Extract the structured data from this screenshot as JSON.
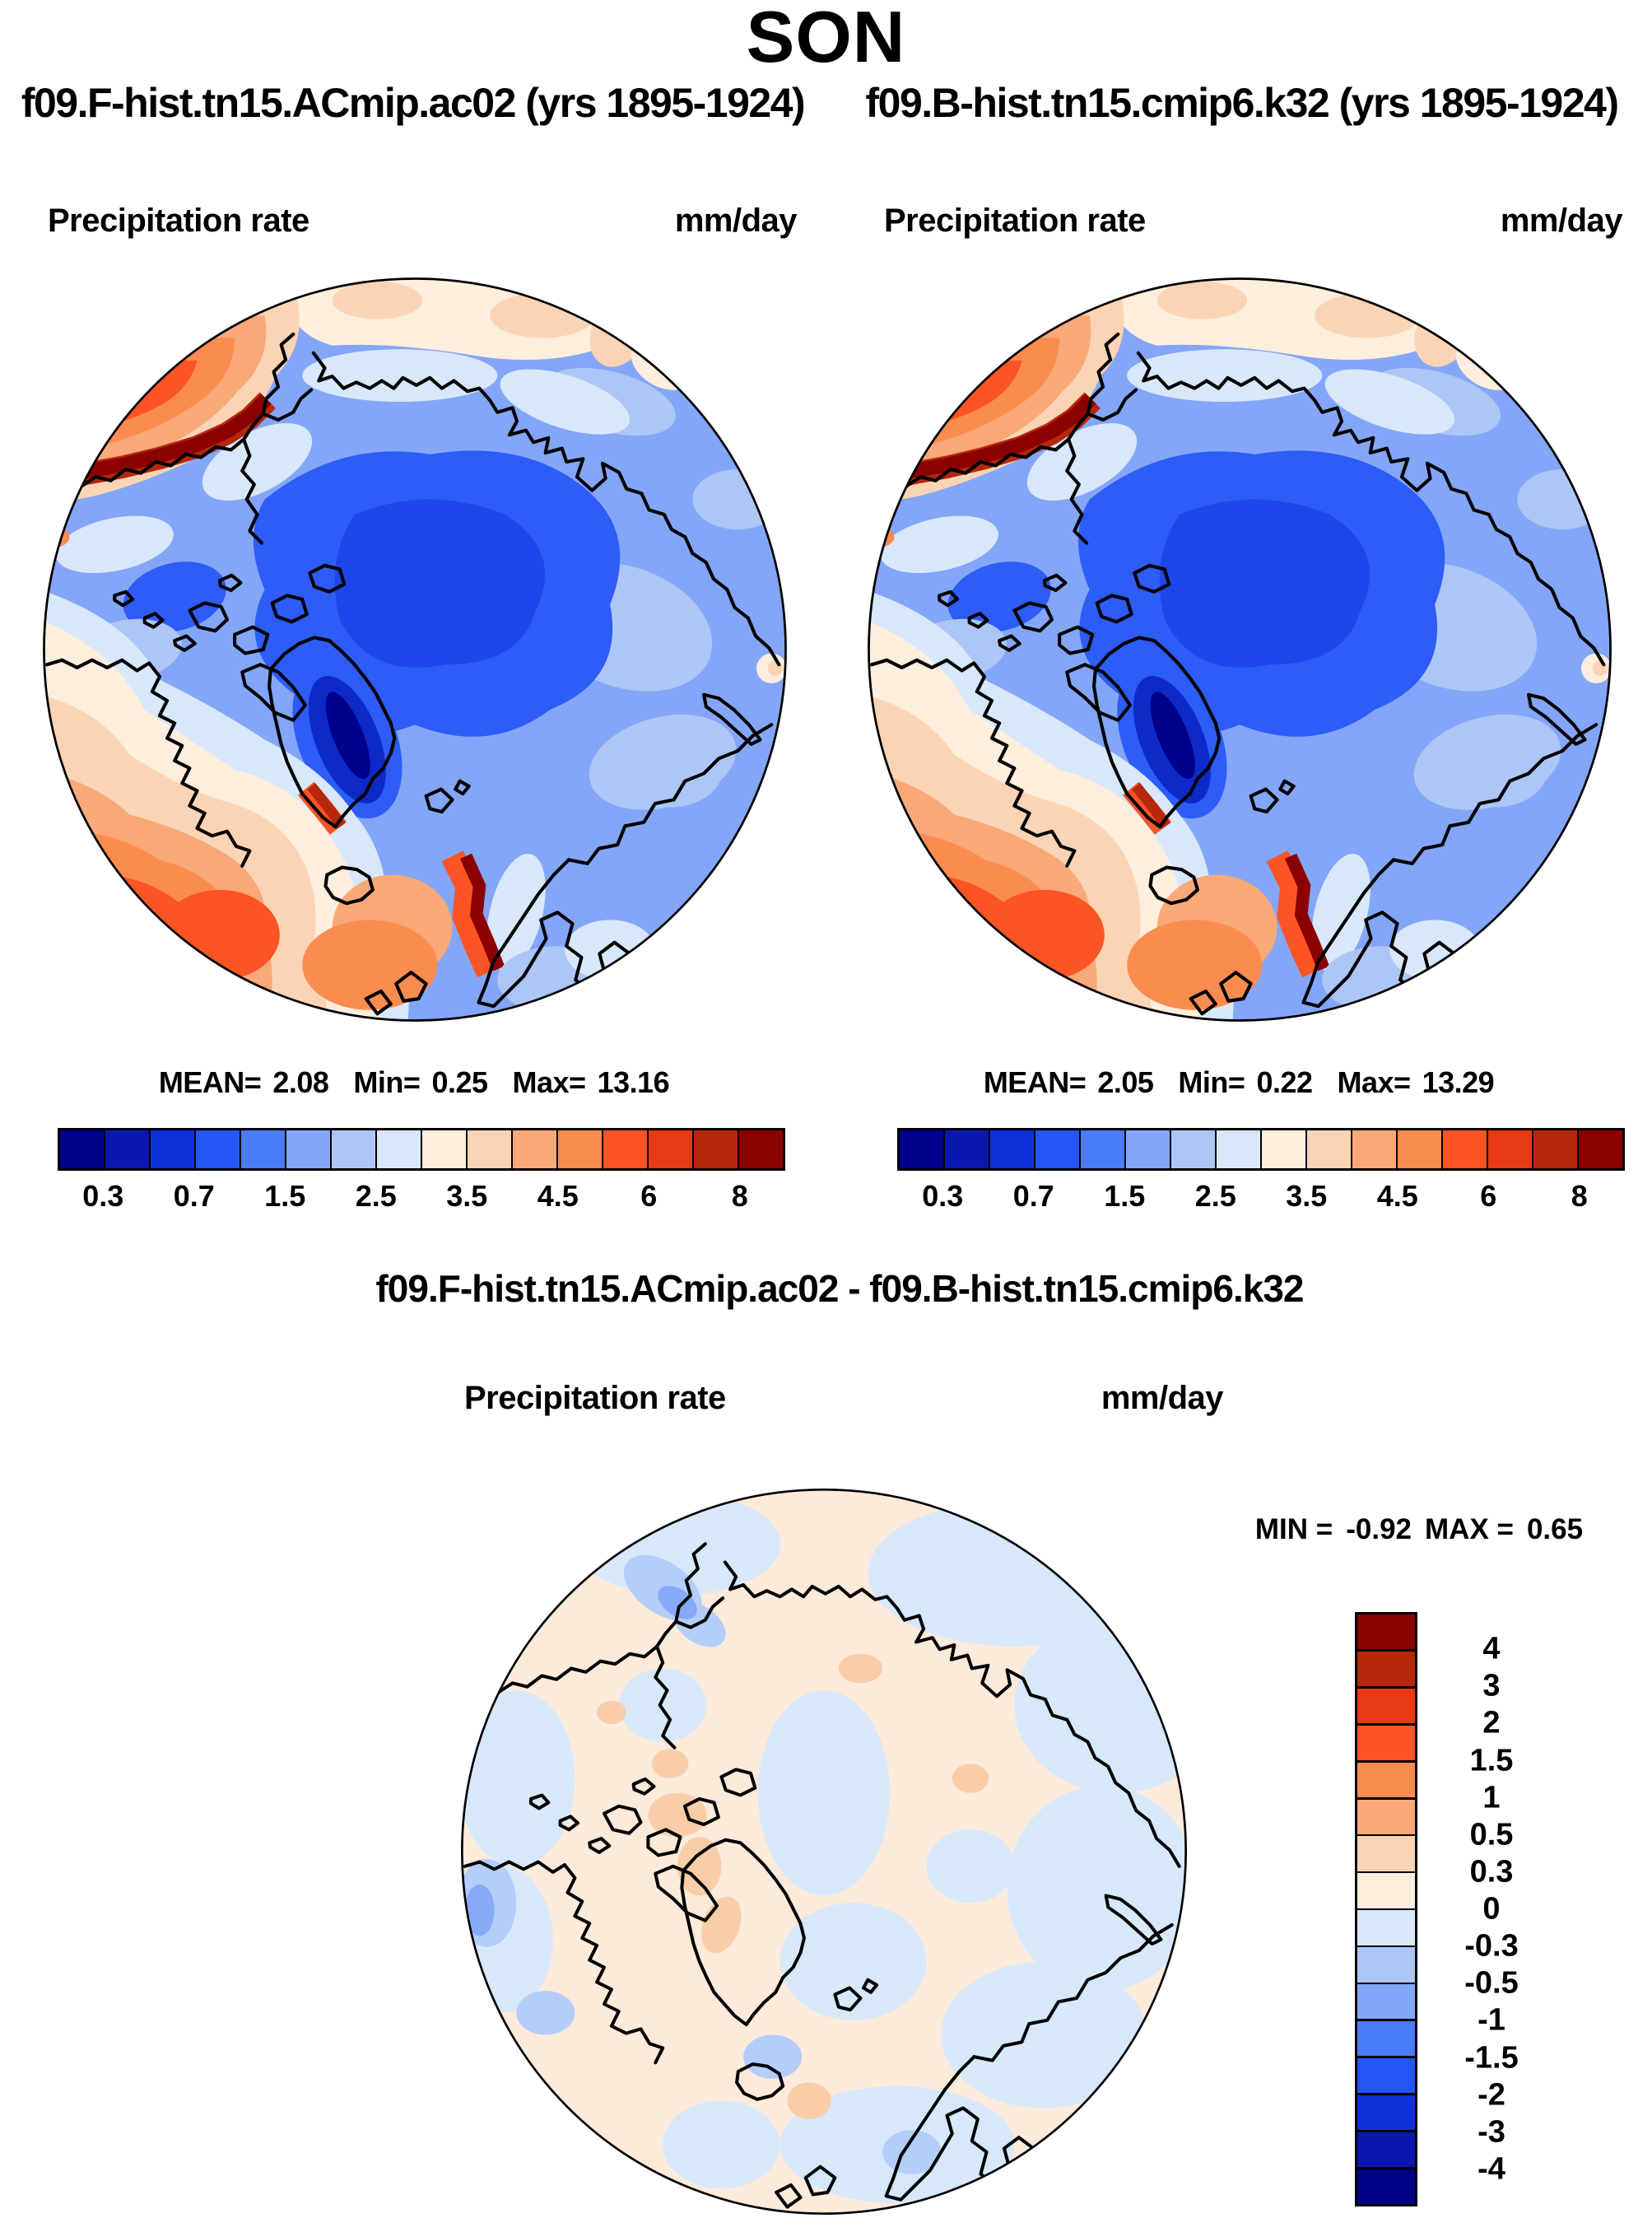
{
  "title": "SON",
  "panels": [
    {
      "subtitle": "f09.F-hist.tn15.ACmip.ac02 (yrs 1895-1924)",
      "var_label": "Precipitation rate",
      "units": "mm/day",
      "stats": {
        "mean_label": "MEAN=",
        "mean": "2.08",
        "min_label": "Min=",
        "min": "0.25",
        "max_label": "Max=",
        "max": "13.16"
      },
      "ticks": [
        "0.3",
        "0.7",
        "1.5",
        "2.5",
        "3.5",
        "4.5",
        "6",
        "8"
      ]
    },
    {
      "subtitle": "f09.B-hist.tn15.cmip6.k32 (yrs 1895-1924)",
      "var_label": "Precipitation rate",
      "units": "mm/day",
      "stats": {
        "mean_label": "MEAN=",
        "mean": "2.05",
        "min_label": "Min=",
        "min": "0.22",
        "max_label": "Max=",
        "max": "13.29"
      },
      "ticks": [
        "0.3",
        "0.7",
        "1.5",
        "2.5",
        "3.5",
        "4.5",
        "6",
        "8"
      ]
    }
  ],
  "diff": {
    "title": "f09.F-hist.tn15.ACmip.ac02 - f09.B-hist.tn15.cmip6.k32",
    "var_label": "Precipitation rate",
    "units": "mm/day",
    "min_label": "MIN =",
    "min": "-0.92",
    "max_label": "MAX =",
    "max": "0.65",
    "ticks": [
      "4",
      "3",
      "2",
      "1.5",
      "1",
      "0.5",
      "0.3",
      "0",
      "-0.3",
      "-0.5",
      "-1",
      "-1.5",
      "-2",
      "-3",
      "-4"
    ]
  },
  "palette": {
    "precip_colors": [
      "#00008b",
      "#0a17b0",
      "#1031d8",
      "#2356f5",
      "#4a7cf8",
      "#84a6f8",
      "#aec6f5",
      "#d8e8fa",
      "#fdeedd",
      "#fbd4b6",
      "#f9a878",
      "#fb8c50",
      "#fd5426",
      "#e63914",
      "#b5280c",
      "#8b0000"
    ],
    "diff_colors_top_to_bottom": [
      "#8b0000",
      "#b5280c",
      "#e63914",
      "#fd5426",
      "#fb8c50",
      "#f9a878",
      "#fbd4b6",
      "#fdeedd",
      "#d8e8fa",
      "#aec6f5",
      "#84a6f8",
      "#4a7cf8",
      "#2356f5",
      "#1031d8",
      "#0a17b0",
      "#00008b"
    ]
  },
  "chart_data": [
    {
      "type": "heatmap",
      "projection": "north-polar-stereographic",
      "title": "f09.F-hist.tn15.ACmip.ac02 (yrs 1895-1924)",
      "variable": "Precipitation rate",
      "units": "mm/day",
      "stats": {
        "mean": 2.08,
        "min": 0.25,
        "max": 13.16
      },
      "contour_levels": [
        0.3,
        0.5,
        0.7,
        1,
        1.5,
        2,
        2.5,
        3,
        3.5,
        4,
        4.5,
        5,
        6,
        7,
        8
      ],
      "labeled_ticks": [
        0.3,
        0.7,
        1.5,
        2.5,
        3.5,
        4.5,
        6,
        8
      ],
      "colormap": "16-step blue-to-red",
      "legend_position": "below-horizontal"
    },
    {
      "type": "heatmap",
      "projection": "north-polar-stereographic",
      "title": "f09.B-hist.tn15.cmip6.k32 (yrs 1895-1924)",
      "variable": "Precipitation rate",
      "units": "mm/day",
      "stats": {
        "mean": 2.05,
        "min": 0.22,
        "max": 13.29
      },
      "contour_levels": [
        0.3,
        0.5,
        0.7,
        1,
        1.5,
        2,
        2.5,
        3,
        3.5,
        4,
        4.5,
        5,
        6,
        7,
        8
      ],
      "labeled_ticks": [
        0.3,
        0.7,
        1.5,
        2.5,
        3.5,
        4.5,
        6,
        8
      ],
      "colormap": "16-step blue-to-red",
      "legend_position": "below-horizontal"
    },
    {
      "type": "heatmap",
      "projection": "north-polar-stereographic",
      "title": "f09.F-hist.tn15.ACmip.ac02 - f09.B-hist.tn15.cmip6.k32",
      "variable": "Precipitation rate",
      "units": "mm/day",
      "stats": {
        "min": -0.92,
        "max": 0.65
      },
      "contour_levels": [
        -4,
        -3,
        -2,
        -1.5,
        -1,
        -0.5,
        -0.3,
        0,
        0.3,
        0.5,
        1,
        1.5,
        2,
        3,
        4
      ],
      "colormap": "16-step blue-to-red",
      "legend_position": "right-vertical"
    }
  ]
}
